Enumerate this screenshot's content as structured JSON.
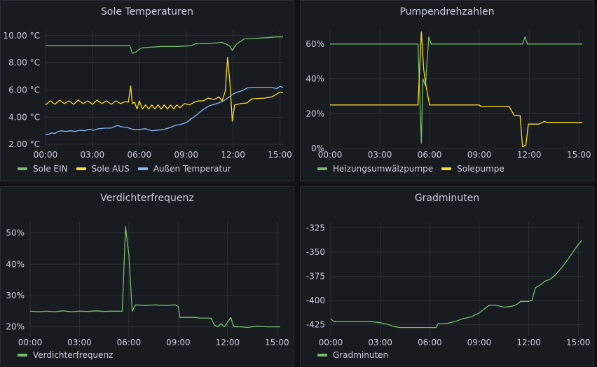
{
  "chart_data": [
    {
      "type": "line",
      "title": "Sole Temperaturen",
      "xlabel": "",
      "ylabel": "",
      "x_ticks": [
        "00:00",
        "03:00",
        "06:00",
        "09:00",
        "12:00",
        "15:00"
      ],
      "xlim": [
        0,
        15.2
      ],
      "y_ticks": [
        {
          "v": 2,
          "label": "2.00 °C"
        },
        {
          "v": 4,
          "label": "4.00 °C"
        },
        {
          "v": 6,
          "label": "6.00 °C"
        },
        {
          "v": 8,
          "label": "8.00 °C"
        },
        {
          "v": 10,
          "label": "10.00 °C"
        }
      ],
      "ylim": [
        1.7,
        10.4
      ],
      "legend_placement": "bottom-left",
      "series": [
        {
          "name": "Sole EIN",
          "color": "#73bf69",
          "points": [
            [
              0,
              9.25
            ],
            [
              5.4,
              9.25
            ],
            [
              5.55,
              8.7
            ],
            [
              5.8,
              8.8
            ],
            [
              6.0,
              9.0
            ],
            [
              6.2,
              9.1
            ],
            [
              6.8,
              9.15
            ],
            [
              7.5,
              9.2
            ],
            [
              8.5,
              9.2
            ],
            [
              9.3,
              9.25
            ],
            [
              9.6,
              9.4
            ],
            [
              10.4,
              9.4
            ],
            [
              10.8,
              9.45
            ],
            [
              11.3,
              9.5
            ],
            [
              11.6,
              9.35
            ],
            [
              11.8,
              9.2
            ],
            [
              11.95,
              8.9
            ],
            [
              12.2,
              9.35
            ],
            [
              12.7,
              9.75
            ],
            [
              13.5,
              9.8
            ],
            [
              14.2,
              9.85
            ],
            [
              14.8,
              9.9
            ],
            [
              15.2,
              9.9
            ]
          ]
        },
        {
          "name": "Sole AUS",
          "color": "#fade2a",
          "points": [
            [
              0,
              4.9
            ],
            [
              0.3,
              5.2
            ],
            [
              0.6,
              4.95
            ],
            [
              0.9,
              5.25
            ],
            [
              1.2,
              5.0
            ],
            [
              1.5,
              5.2
            ],
            [
              1.8,
              4.95
            ],
            [
              2.1,
              5.25
            ],
            [
              2.4,
              5.0
            ],
            [
              2.7,
              5.2
            ],
            [
              3.0,
              4.95
            ],
            [
              3.3,
              5.25
            ],
            [
              3.6,
              5.0
            ],
            [
              3.9,
              5.2
            ],
            [
              4.2,
              4.95
            ],
            [
              4.5,
              5.2
            ],
            [
              4.8,
              5.0
            ],
            [
              5.1,
              5.15
            ],
            [
              5.3,
              5.1
            ],
            [
              5.45,
              6.3
            ],
            [
              5.55,
              5.0
            ],
            [
              5.7,
              5.1
            ],
            [
              5.85,
              4.6
            ],
            [
              6.0,
              5.2
            ],
            [
              6.2,
              4.6
            ],
            [
              6.4,
              4.9
            ],
            [
              6.6,
              4.6
            ],
            [
              6.8,
              4.9
            ],
            [
              7.0,
              4.6
            ],
            [
              7.2,
              4.9
            ],
            [
              7.4,
              4.6
            ],
            [
              7.6,
              4.9
            ],
            [
              7.8,
              4.6
            ],
            [
              8.0,
              4.9
            ],
            [
              8.2,
              4.6
            ],
            [
              8.4,
              4.9
            ],
            [
              8.6,
              4.7
            ],
            [
              8.9,
              5.0
            ],
            [
              9.2,
              4.9
            ],
            [
              9.5,
              5.1
            ],
            [
              9.8,
              5.2
            ],
            [
              10.1,
              5.2
            ],
            [
              10.4,
              5.4
            ],
            [
              10.8,
              5.3
            ],
            [
              11.1,
              5.5
            ],
            [
              11.3,
              5.2
            ],
            [
              11.5,
              5.9
            ],
            [
              11.65,
              8.4
            ],
            [
              11.8,
              6.5
            ],
            [
              11.95,
              3.7
            ],
            [
              12.1,
              4.9
            ],
            [
              12.5,
              5.0
            ],
            [
              12.9,
              5.05
            ],
            [
              13.2,
              5.35
            ],
            [
              14.0,
              5.4
            ],
            [
              14.5,
              5.5
            ],
            [
              15.0,
              5.85
            ],
            [
              15.2,
              5.8
            ]
          ]
        },
        {
          "name": "Außen Temperatur",
          "color": "#8ab8ff",
          "points": [
            [
              0,
              2.7
            ],
            [
              0.2,
              2.75
            ],
            [
              0.4,
              2.85
            ],
            [
              0.6,
              2.8
            ],
            [
              0.8,
              2.95
            ],
            [
              1.0,
              3.0
            ],
            [
              1.3,
              2.95
            ],
            [
              1.6,
              3.0
            ],
            [
              1.9,
              2.95
            ],
            [
              2.2,
              3.05
            ],
            [
              2.5,
              3.0
            ],
            [
              2.8,
              3.1
            ],
            [
              3.1,
              3.05
            ],
            [
              3.4,
              3.15
            ],
            [
              3.8,
              3.2
            ],
            [
              4.2,
              3.2
            ],
            [
              4.5,
              3.35
            ],
            [
              4.6,
              3.4
            ],
            [
              4.8,
              3.3
            ],
            [
              5.2,
              3.25
            ],
            [
              5.6,
              3.1
            ],
            [
              6.0,
              3.1
            ],
            [
              6.4,
              3.15
            ],
            [
              6.8,
              3.0
            ],
            [
              7.2,
              3.05
            ],
            [
              7.6,
              3.1
            ],
            [
              8.0,
              3.25
            ],
            [
              8.3,
              3.4
            ],
            [
              8.6,
              3.45
            ],
            [
              9.0,
              3.6
            ],
            [
              9.3,
              3.85
            ],
            [
              9.6,
              4.1
            ],
            [
              9.9,
              4.4
            ],
            [
              10.2,
              4.65
            ],
            [
              10.5,
              4.85
            ],
            [
              10.8,
              4.95
            ],
            [
              11.1,
              5.05
            ],
            [
              11.4,
              5.2
            ],
            [
              11.7,
              5.45
            ],
            [
              12.0,
              5.7
            ],
            [
              12.3,
              5.85
            ],
            [
              12.6,
              5.95
            ],
            [
              12.9,
              6.15
            ],
            [
              13.2,
              6.2
            ],
            [
              13.8,
              6.2
            ],
            [
              14.4,
              6.2
            ],
            [
              14.8,
              6.1
            ],
            [
              15.0,
              6.25
            ],
            [
              15.2,
              6.2
            ]
          ]
        }
      ]
    },
    {
      "type": "line",
      "title": "Pumpendrehzahlen",
      "xlabel": "",
      "ylabel": "",
      "x_ticks": [
        "00:00",
        "03:00",
        "06:00",
        "09:00",
        "12:00",
        "15:00"
      ],
      "xlim": [
        0,
        15.2
      ],
      "y_ticks": [
        {
          "v": 0,
          "label": "0%"
        },
        {
          "v": 20,
          "label": "20%"
        },
        {
          "v": 40,
          "label": "40%"
        },
        {
          "v": 60,
          "label": "60%"
        }
      ],
      "ylim": [
        0,
        68
      ],
      "legend_placement": "bottom-left",
      "series": [
        {
          "name": "Heizungsumwälzpumpe",
          "color": "#73bf69",
          "points": [
            [
              0,
              60
            ],
            [
              5.3,
              60
            ],
            [
              5.5,
              3
            ],
            [
              5.6,
              40
            ],
            [
              5.75,
              36
            ],
            [
              5.95,
              64
            ],
            [
              6.1,
              60
            ],
            [
              11.6,
              60
            ],
            [
              11.75,
              64
            ],
            [
              11.9,
              60
            ],
            [
              15.2,
              60
            ]
          ]
        },
        {
          "name": "Solepumpe",
          "color": "#fade2a",
          "points": [
            [
              0,
              25
            ],
            [
              5.3,
              25
            ],
            [
              5.5,
              67
            ],
            [
              5.65,
              45
            ],
            [
              5.8,
              35
            ],
            [
              6.0,
              25
            ],
            [
              9.0,
              25
            ],
            [
              9.1,
              24
            ],
            [
              10.8,
              24
            ],
            [
              11.1,
              19
            ],
            [
              11.45,
              19
            ],
            [
              11.6,
              1
            ],
            [
              11.8,
              2
            ],
            [
              11.95,
              14
            ],
            [
              12.6,
              14
            ],
            [
              12.9,
              15.5
            ],
            [
              13.1,
              15
            ],
            [
              15.2,
              15
            ]
          ]
        }
      ]
    },
    {
      "type": "line",
      "title": "Verdichterfrequenz",
      "xlabel": "",
      "ylabel": "",
      "x_ticks": [
        "00:00",
        "03:00",
        "06:00",
        "09:00",
        "12:00",
        "15:00"
      ],
      "xlim": [
        0,
        15.2
      ],
      "y_ticks": [
        {
          "v": 20,
          "label": "20%"
        },
        {
          "v": 30,
          "label": "30%"
        },
        {
          "v": 40,
          "label": "40%"
        },
        {
          "v": 50,
          "label": "50%"
        }
      ],
      "ylim": [
        17,
        53.5
      ],
      "legend_placement": "bottom-left",
      "series": [
        {
          "name": "Verdichterfrequenz",
          "color": "#73bf69",
          "points": [
            [
              0,
              25
            ],
            [
              0.5,
              24.8
            ],
            [
              1.0,
              25
            ],
            [
              1.5,
              24.8
            ],
            [
              2.0,
              25.1
            ],
            [
              2.5,
              24.8
            ],
            [
              3.0,
              25
            ],
            [
              3.5,
              24.9
            ],
            [
              4.0,
              25.1
            ],
            [
              4.5,
              24.9
            ],
            [
              5.0,
              25
            ],
            [
              5.6,
              25
            ],
            [
              5.8,
              52
            ],
            [
              6.0,
              43
            ],
            [
              6.2,
              25
            ],
            [
              6.4,
              27
            ],
            [
              7.0,
              26.8
            ],
            [
              7.6,
              27
            ],
            [
              8.2,
              26.8
            ],
            [
              8.8,
              27
            ],
            [
              9.0,
              26.5
            ],
            [
              9.1,
              23
            ],
            [
              10.0,
              23
            ],
            [
              10.3,
              22.8
            ],
            [
              10.8,
              22.8
            ],
            [
              11.0,
              22.7
            ],
            [
              11.2,
              20.5
            ],
            [
              11.4,
              20
            ],
            [
              11.6,
              21
            ],
            [
              11.8,
              20
            ],
            [
              12.0,
              21.5
            ],
            [
              12.2,
              23
            ],
            [
              12.3,
              21
            ],
            [
              12.4,
              20
            ],
            [
              12.8,
              20
            ],
            [
              13.2,
              19.8
            ],
            [
              13.8,
              20.2
            ],
            [
              14.4,
              20
            ],
            [
              15.2,
              20
            ]
          ]
        }
      ]
    },
    {
      "type": "line",
      "title": "Gradminuten",
      "xlabel": "",
      "ylabel": "",
      "x_ticks": [
        "00:00",
        "03:00",
        "06:00",
        "09:00",
        "12:00",
        "15:00"
      ],
      "xlim": [
        0,
        15.2
      ],
      "y_ticks": [
        {
          "v": -425,
          "label": "-425"
        },
        {
          "v": -400,
          "label": "-400"
        },
        {
          "v": -375,
          "label": "-375"
        },
        {
          "v": -350,
          "label": "-350"
        },
        {
          "v": -325,
          "label": "-325"
        }
      ],
      "ylim": [
        -437,
        -319
      ],
      "legend_placement": "bottom-left",
      "series": [
        {
          "name": "Gradminuten",
          "color": "#73bf69",
          "points": [
            [
              0,
              -419
            ],
            [
              0.2,
              -422
            ],
            [
              0.5,
              -422
            ],
            [
              1.5,
              -422
            ],
            [
              2.5,
              -422
            ],
            [
              3.0,
              -423
            ],
            [
              3.5,
              -425
            ],
            [
              3.8,
              -427
            ],
            [
              4.2,
              -428
            ],
            [
              5.0,
              -428
            ],
            [
              6.0,
              -428
            ],
            [
              6.4,
              -428
            ],
            [
              6.5,
              -424
            ],
            [
              7.0,
              -424
            ],
            [
              7.5,
              -422
            ],
            [
              8.0,
              -419
            ],
            [
              8.5,
              -417
            ],
            [
              9.0,
              -413
            ],
            [
              9.3,
              -409
            ],
            [
              9.6,
              -405
            ],
            [
              10.0,
              -405
            ],
            [
              10.5,
              -407
            ],
            [
              11.0,
              -406
            ],
            [
              11.3,
              -404
            ],
            [
              11.5,
              -401
            ],
            [
              12.0,
              -401
            ],
            [
              12.2,
              -400
            ],
            [
              12.4,
              -387
            ],
            [
              12.7,
              -384
            ],
            [
              13.0,
              -380
            ],
            [
              13.3,
              -378
            ],
            [
              13.6,
              -374
            ],
            [
              14.0,
              -366
            ],
            [
              14.4,
              -357
            ],
            [
              14.8,
              -347
            ],
            [
              15.2,
              -338
            ]
          ]
        }
      ]
    }
  ]
}
